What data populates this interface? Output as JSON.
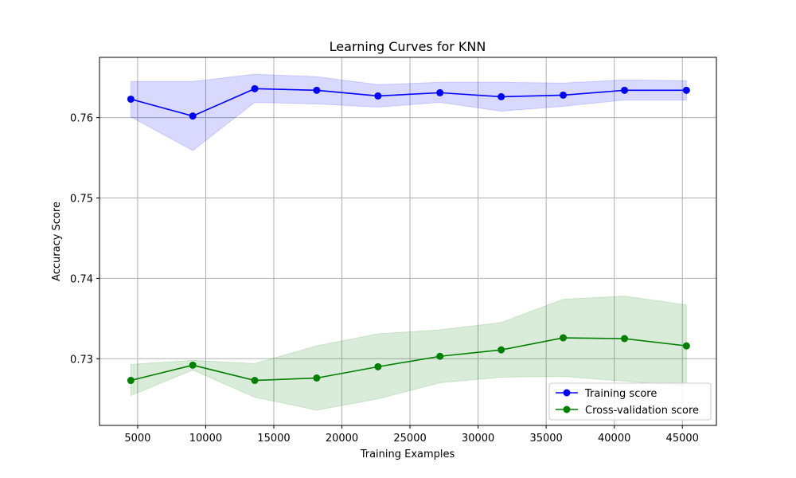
{
  "chart_data": {
    "type": "line",
    "title": "Learning Curves for KNN",
    "xlabel": "Training Examples",
    "ylabel": "Accuracy Score",
    "xlim": [
      2200,
      47500
    ],
    "ylim": [
      0.7217,
      0.7675
    ],
    "xticks": [
      5000,
      10000,
      15000,
      20000,
      25000,
      30000,
      35000,
      40000,
      45000
    ],
    "yticks": [
      0.73,
      0.74,
      0.75,
      0.76
    ],
    "grid": true,
    "legend_position": "lower-right",
    "x": [
      4500,
      9050,
      13600,
      18150,
      22650,
      27200,
      31700,
      36250,
      40750,
      45300
    ],
    "series": [
      {
        "name": "Training score",
        "color": "#0000ff",
        "band_color": "#0000ff",
        "values": [
          0.7623,
          0.7602,
          0.7636,
          0.7634,
          0.7627,
          0.7631,
          0.7626,
          0.7628,
          0.7634,
          0.7634
        ],
        "band_low": [
          0.7601,
          0.7559,
          0.7619,
          0.7617,
          0.7613,
          0.7619,
          0.7608,
          0.7614,
          0.7622,
          0.7622
        ],
        "band_high": [
          0.7645,
          0.7645,
          0.7654,
          0.7651,
          0.7641,
          0.7644,
          0.7644,
          0.7643,
          0.7647,
          0.7646
        ]
      },
      {
        "name": "Cross-validation score",
        "color": "#008000",
        "band_color": "#008000",
        "values": [
          0.7273,
          0.7292,
          0.7273,
          0.7276,
          0.729,
          0.7303,
          0.7311,
          0.7326,
          0.7325,
          0.7316
        ],
        "band_low": [
          0.7254,
          0.7286,
          0.7252,
          0.7236,
          0.725,
          0.727,
          0.7277,
          0.7278,
          0.7272,
          0.7266
        ],
        "band_high": [
          0.7293,
          0.7298,
          0.7294,
          0.7316,
          0.7331,
          0.7336,
          0.7345,
          0.7374,
          0.7378,
          0.7367
        ]
      }
    ]
  }
}
